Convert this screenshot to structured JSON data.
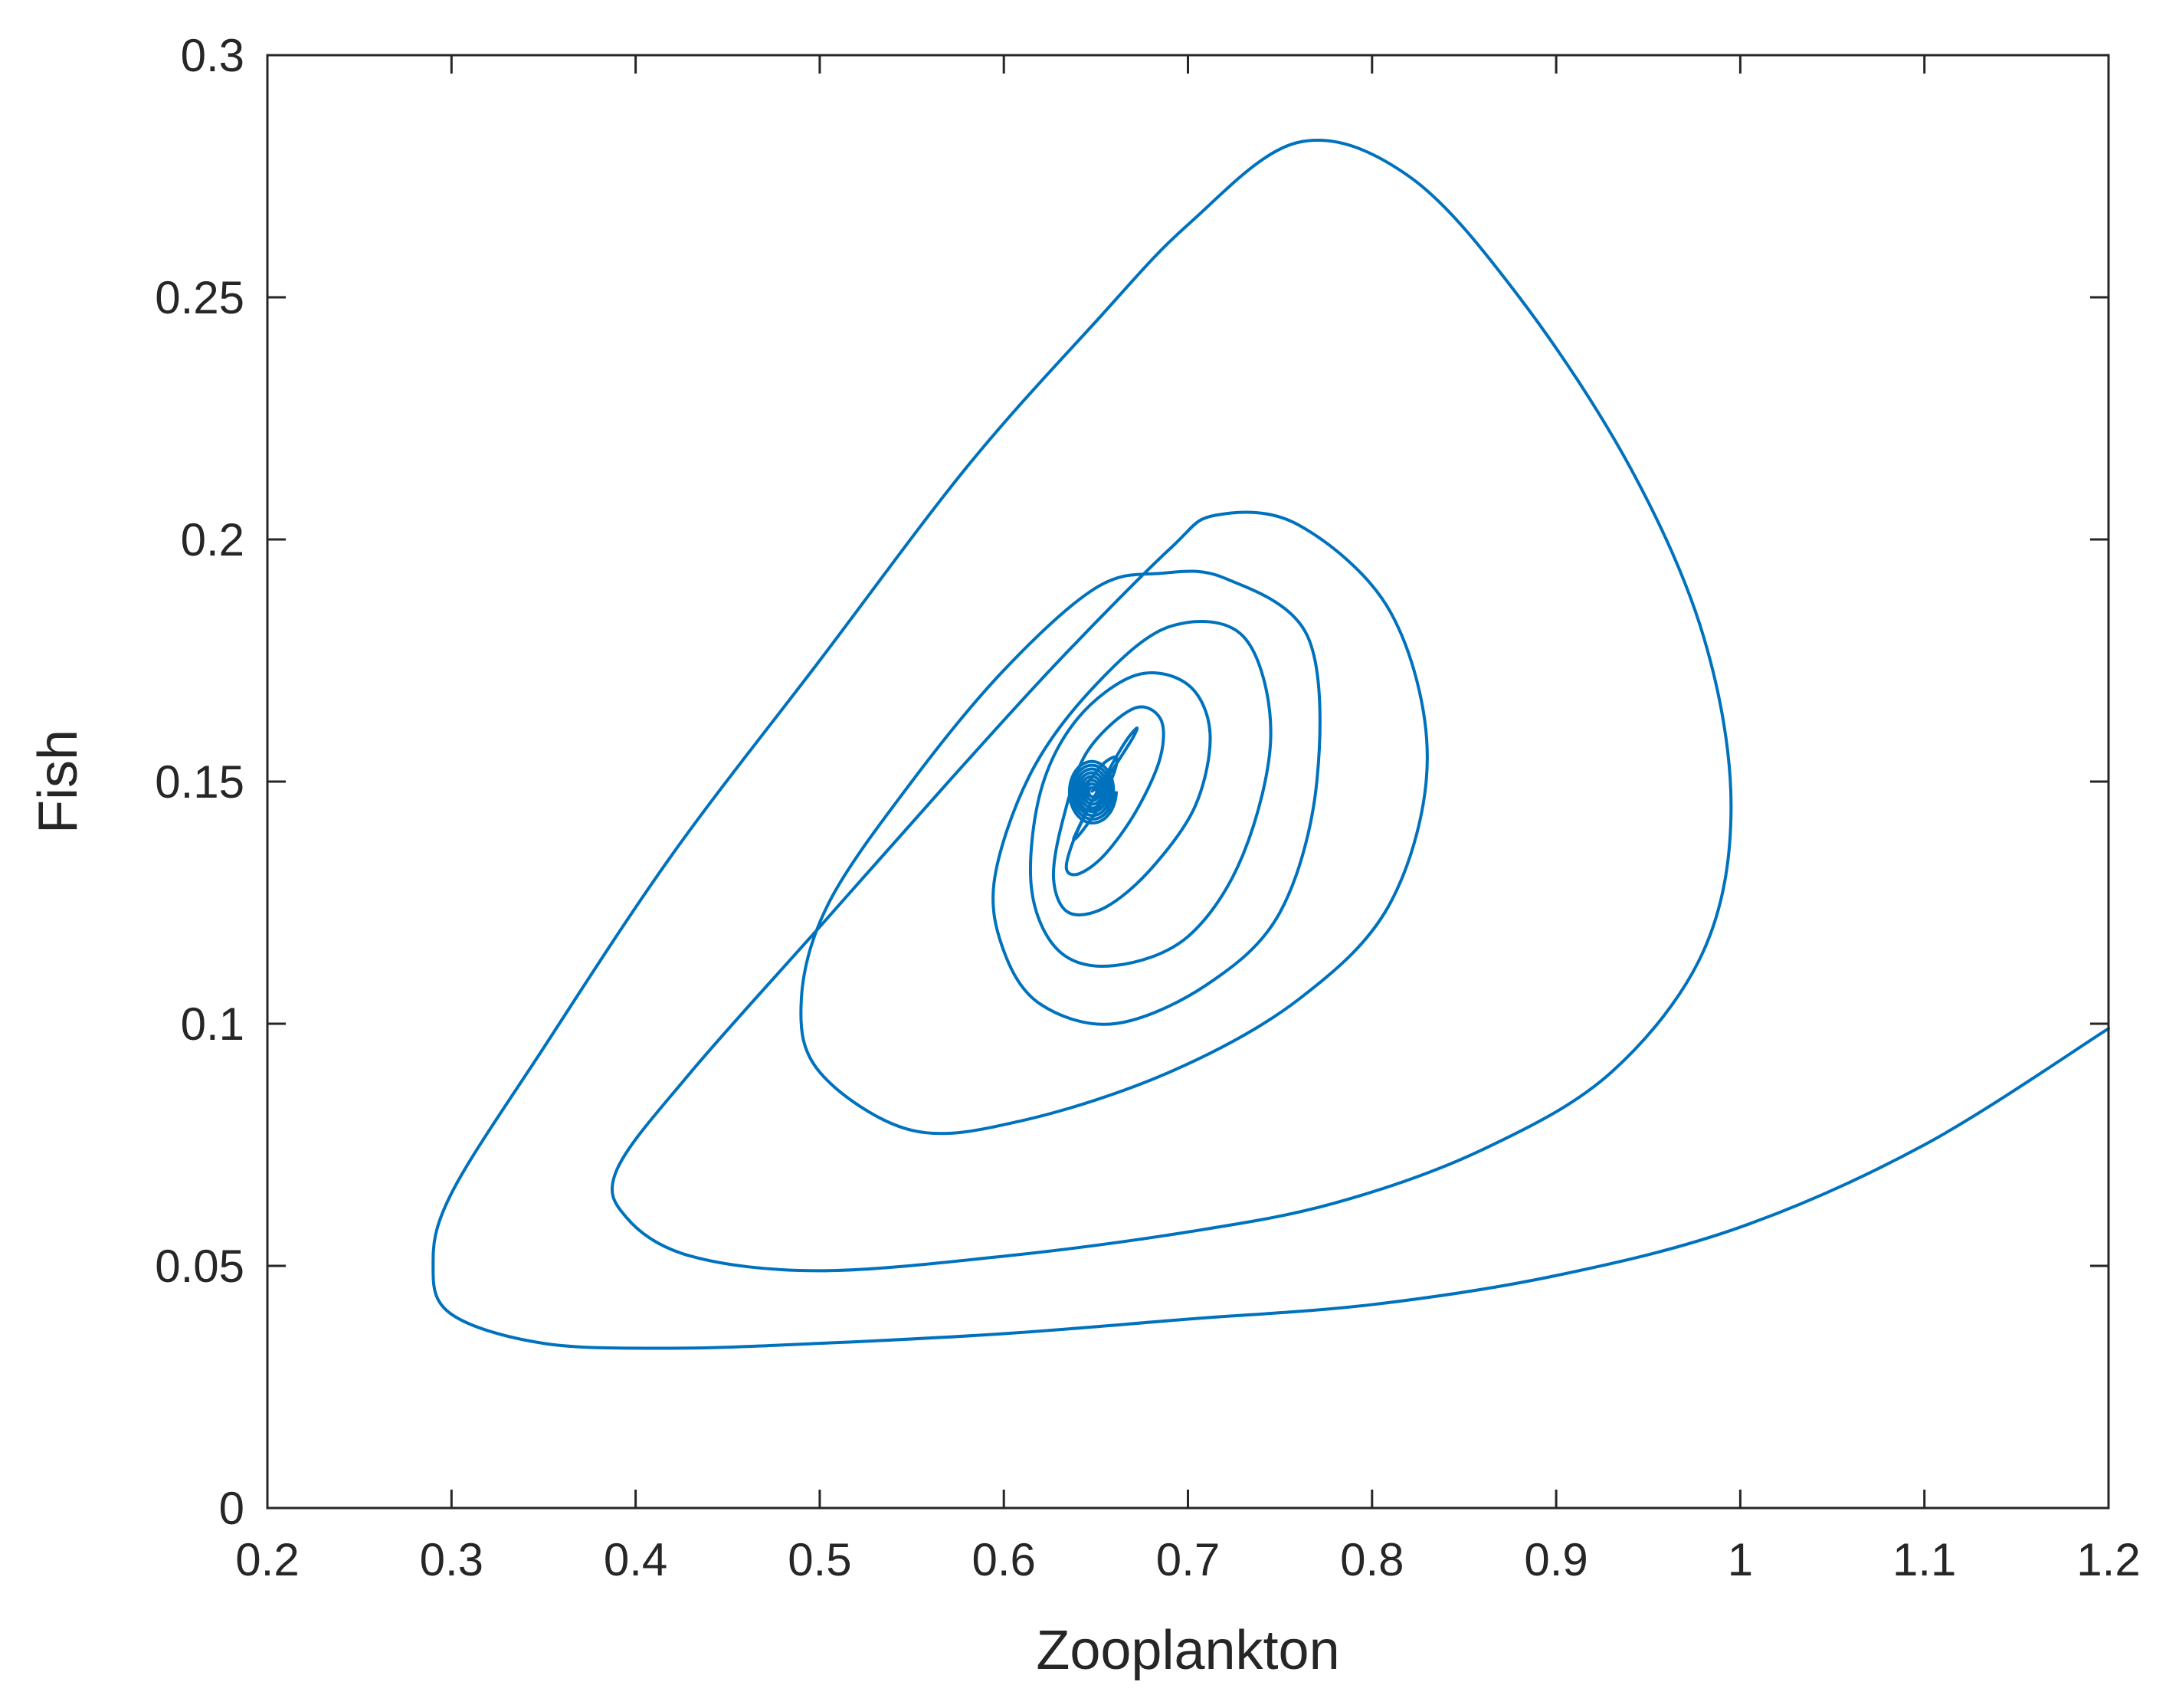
{
  "chart_data": {
    "type": "line",
    "title": "",
    "xlabel": "Zooplankton",
    "ylabel": "Fish",
    "xlim": [
      0.2,
      1.2
    ],
    "ylim": [
      0,
      0.3
    ],
    "xticks": [
      "0.2",
      "0.3",
      "0.4",
      "0.5",
      "0.6",
      "0.7",
      "0.8",
      "0.9",
      "1",
      "1.1",
      "1.2"
    ],
    "yticks": [
      "0",
      "0.05",
      "0.1",
      "0.15",
      "0.2",
      "0.25",
      "0.3"
    ],
    "grid": false,
    "box": true,
    "line_color": "#0072BD",
    "axis_color": "#262626",
    "background": "#ffffff",
    "equilibrium": [
      0.648,
      0.148
    ],
    "series": [
      {
        "x": [
          1.2,
          1.1,
          1.0,
          0.9,
          0.8,
          0.7,
          0.6,
          0.5,
          0.42,
          0.35,
          0.3,
          0.29,
          0.3,
          0.35,
          0.42,
          0.5,
          0.58,
          0.65,
          0.7,
          0.76,
          0.82,
          0.88,
          0.94,
          0.98,
          0.995,
          0.98,
          0.93,
          0.86,
          0.78,
          0.7,
          0.6,
          0.5,
          0.43,
          0.395,
          0.39,
          0.43,
          0.5,
          0.57,
          0.63,
          0.69,
          0.715,
          0.76,
          0.81,
          0.83,
          0.81,
          0.76,
          0.69,
          0.61,
          0.55,
          0.5,
          0.49,
          0.505,
          0.55,
          0.6,
          0.65,
          0.685,
          0.72,
          0.765,
          0.77,
          0.75,
          0.71,
          0.66,
          0.62,
          0.6,
          0.595,
          0.615,
          0.65,
          0.69,
          0.73,
          0.745,
          0.73,
          0.7,
          0.66,
          0.63,
          0.615,
          0.62,
          0.64,
          0.672,
          0.7,
          0.712,
          0.704,
          0.68,
          0.655,
          0.635,
          0.627,
          0.632,
          0.645,
          0.67,
          0.685,
          0.685,
          0.672,
          0.655,
          0.641,
          0.634,
          0.638,
          0.648,
          0.664,
          0.672,
          0.67,
          0.66,
          0.648,
          0.64,
          0.638,
          0.643,
          0.652,
          0.66,
          0.661,
          0.655,
          0.648,
          0.643,
          0.642,
          0.646,
          0.651,
          0.654,
          0.652,
          0.648
        ],
        "y": [
          0.099,
          0.075,
          0.058,
          0.048,
          0.042,
          0.039,
          0.036,
          0.034,
          0.033,
          0.034,
          0.04,
          0.05,
          0.065,
          0.095,
          0.135,
          0.175,
          0.215,
          0.245,
          0.265,
          0.282,
          0.275,
          0.25,
          0.215,
          0.18,
          0.145,
          0.115,
          0.09,
          0.074,
          0.063,
          0.057,
          0.052,
          0.049,
          0.052,
          0.06,
          0.07,
          0.09,
          0.12,
          0.15,
          0.175,
          0.198,
          0.205,
          0.203,
          0.185,
          0.155,
          0.125,
          0.105,
          0.09,
          0.08,
          0.078,
          0.09,
          0.105,
          0.125,
          0.15,
          0.173,
          0.19,
          0.193,
          0.192,
          0.18,
          0.15,
          0.123,
          0.108,
          0.1,
          0.104,
          0.115,
          0.13,
          0.152,
          0.17,
          0.182,
          0.18,
          0.16,
          0.135,
          0.118,
          0.112,
          0.115,
          0.128,
          0.148,
          0.163,
          0.172,
          0.17,
          0.16,
          0.145,
          0.132,
          0.124,
          0.123,
          0.13,
          0.142,
          0.156,
          0.165,
          0.163,
          0.155,
          0.144,
          0.135,
          0.131,
          0.132,
          0.138,
          0.146,
          0.157,
          0.161,
          0.159,
          0.153,
          0.146,
          0.14,
          0.138,
          0.14,
          0.145,
          0.152,
          0.155,
          0.154,
          0.151,
          0.148,
          0.145,
          0.144,
          0.145,
          0.148,
          0.15,
          0.148
        ]
      }
    ]
  }
}
